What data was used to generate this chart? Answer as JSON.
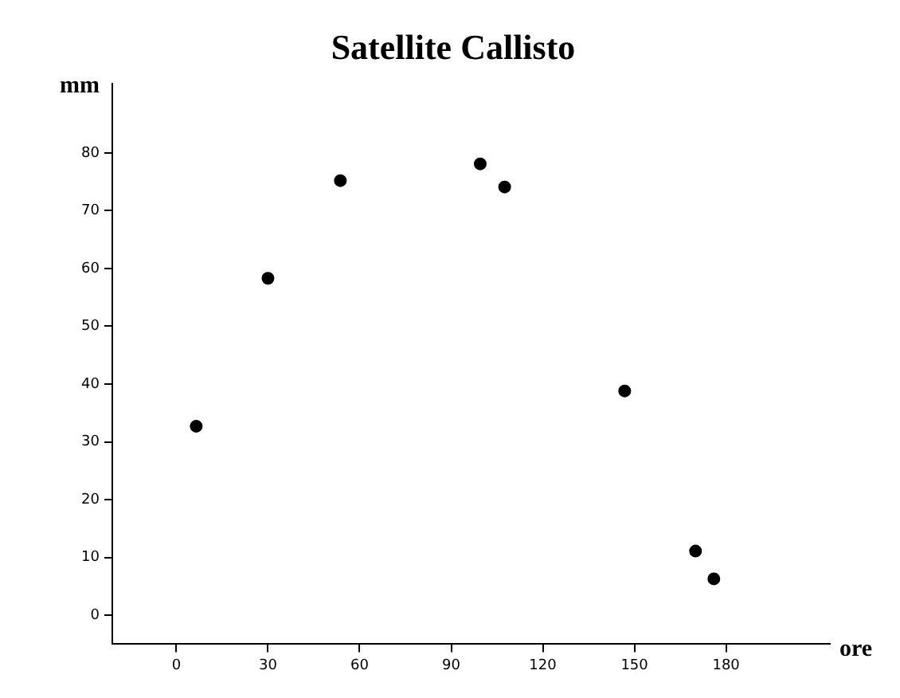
{
  "chart_data": {
    "type": "scatter",
    "title": "Satellite Callisto",
    "xlabel": "ore",
    "ylabel": "mm",
    "x": [
      6.5,
      30,
      53.7,
      99.5,
      107.5,
      146.8,
      170,
      176
    ],
    "series": [
      {
        "color": "#000000",
        "values": [
          32.7,
          58.3,
          75.2,
          78.1,
          74.1,
          38.8,
          11.1,
          6.3
        ]
      }
    ],
    "xlim": [
      -21,
      214
    ],
    "ylim": [
      -5,
      92
    ],
    "xticks": [
      0,
      30,
      60,
      90,
      120,
      150,
      180
    ],
    "yticks": [
      0,
      10,
      20,
      30,
      40,
      50,
      60,
      70,
      80
    ],
    "marker": "circle",
    "grid": false,
    "legend": false
  }
}
